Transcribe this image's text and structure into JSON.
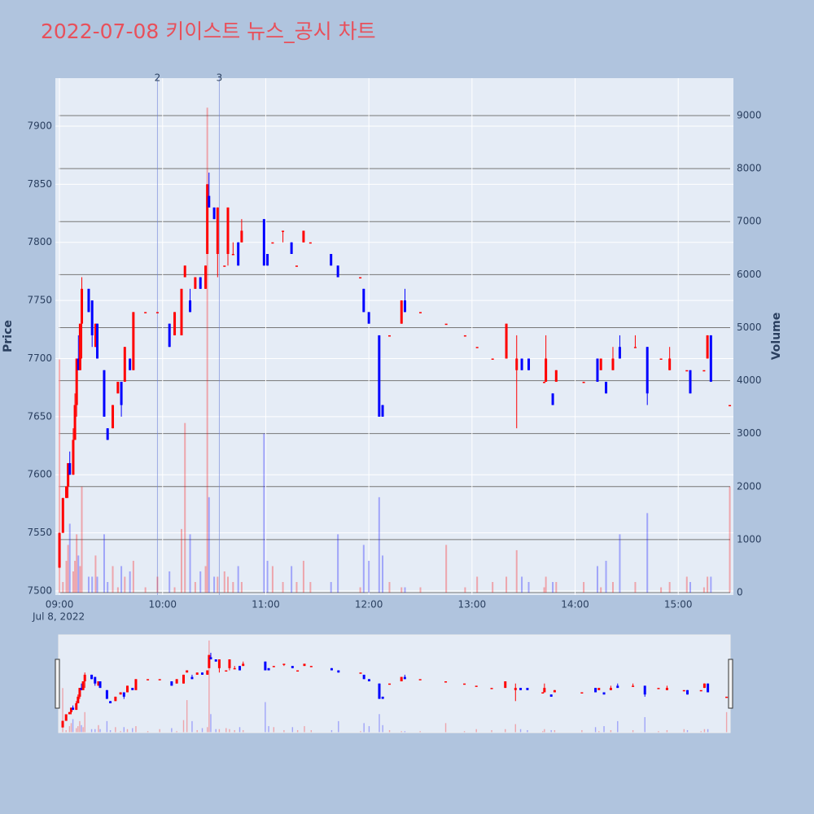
{
  "chart_data": {
    "type": "candlestick",
    "title": "2022-07-08 키이스트 뉴스_공시 차트",
    "ylabel": "Price",
    "y2label": "Volume",
    "x_date_label": "Jul 8, 2022",
    "increasing_color": "#ff0000",
    "decreasing_color": "#0000ff",
    "x": [
      0,
      2,
      4,
      5,
      6,
      8,
      9,
      10,
      11,
      12,
      13,
      17,
      19,
      21,
      22,
      26,
      28,
      31,
      34,
      36,
      38,
      41,
      43,
      50,
      57,
      64,
      67,
      71,
      73,
      76,
      79,
      82,
      85,
      86,
      87,
      90,
      92,
      96,
      98,
      101,
      104,
      106,
      119,
      121,
      124,
      130,
      135,
      138,
      142,
      146,
      158,
      162,
      175,
      177,
      180,
      186,
      188,
      192,
      199,
      201,
      210,
      225,
      236,
      243,
      252,
      260,
      266,
      269,
      273,
      282,
      283,
      287,
      289,
      305,
      313,
      315,
      318,
      322,
      326,
      335,
      342,
      350,
      355,
      365,
      367,
      375,
      377,
      379,
      390
    ],
    "open": [
      7520,
      7550,
      7580,
      7590,
      7610,
      7600,
      7630,
      7660,
      7700,
      7690,
      7730,
      7760,
      7750,
      7710,
      7730,
      7690,
      7640,
      7640,
      7670,
      7680,
      7680,
      7700,
      7690,
      7740,
      7740,
      7730,
      7720,
      7720,
      7770,
      7750,
      7760,
      7770,
      7760,
      7790,
      7840,
      7830,
      7790,
      7780,
      7790,
      7790,
      7800,
      7800,
      7820,
      7790,
      7800,
      7810,
      7800,
      7780,
      7800,
      7800,
      7790,
      7780,
      7770,
      7760,
      7740,
      7720,
      7660,
      7720,
      7730,
      7750,
      7740,
      7730,
      7720,
      7710,
      7700,
      7700,
      7690,
      7700,
      7700,
      7680,
      7680,
      7670,
      7680,
      7680,
      7700,
      7690,
      7680,
      7690,
      7710,
      7710,
      7710,
      7700,
      7690,
      7690,
      7690,
      7690,
      7700,
      7720,
      7660
    ],
    "high": [
      7550,
      7580,
      7590,
      7610,
      7620,
      7640,
      7670,
      7700,
      7720,
      7730,
      7770,
      7760,
      7750,
      7730,
      7730,
      7690,
      7640,
      7660,
      7680,
      7680,
      7710,
      7700,
      7740,
      7740,
      7740,
      7730,
      7740,
      7760,
      7780,
      7760,
      7770,
      7770,
      7780,
      7850,
      7860,
      7830,
      7830,
      7780,
      7830,
      7800,
      7800,
      7820,
      7820,
      7790,
      7800,
      7810,
      7800,
      7780,
      7810,
      7800,
      7790,
      7780,
      7770,
      7760,
      7740,
      7720,
      7660,
      7720,
      7750,
      7760,
      7740,
      7730,
      7720,
      7710,
      7700,
      7730,
      7720,
      7700,
      7700,
      7680,
      7720,
      7670,
      7690,
      7680,
      7700,
      7700,
      7680,
      7710,
      7720,
      7720,
      7710,
      7700,
      7710,
      7690,
      7690,
      7690,
      7720,
      7720,
      7660
    ],
    "low": [
      7520,
      7550,
      7580,
      7580,
      7600,
      7600,
      7630,
      7650,
      7690,
      7690,
      7700,
      7740,
      7710,
      7710,
      7700,
      7650,
      7630,
      7640,
      7670,
      7650,
      7680,
      7690,
      7690,
      7740,
      7740,
      7710,
      7720,
      7720,
      7770,
      7740,
      7760,
      7760,
      7760,
      7790,
      7830,
      7820,
      7770,
      7780,
      7780,
      7790,
      7780,
      7800,
      7780,
      7780,
      7800,
      7800,
      7790,
      7780,
      7800,
      7800,
      7780,
      7770,
      7770,
      7740,
      7730,
      7650,
      7650,
      7720,
      7730,
      7740,
      7740,
      7730,
      7720,
      7710,
      7700,
      7700,
      7640,
      7690,
      7690,
      7680,
      7680,
      7660,
      7680,
      7680,
      7680,
      7690,
      7670,
      7690,
      7700,
      7710,
      7660,
      7700,
      7690,
      7690,
      7670,
      7690,
      7700,
      7680,
      7660
    ],
    "close": [
      7550,
      7580,
      7590,
      7610,
      7600,
      7630,
      7660,
      7700,
      7690,
      7730,
      7760,
      7740,
      7720,
      7730,
      7700,
      7650,
      7630,
      7660,
      7680,
      7660,
      7710,
      7690,
      7740,
      7740,
      7740,
      7710,
      7740,
      7760,
      7780,
      7740,
      7770,
      7760,
      7780,
      7850,
      7830,
      7820,
      7830,
      7780,
      7830,
      7790,
      7780,
      7810,
      7780,
      7780,
      7800,
      7810,
      7790,
      7780,
      7810,
      7800,
      7780,
      7770,
      7770,
      7740,
      7730,
      7650,
      7650,
      7720,
      7750,
      7740,
      7740,
      7730,
      7720,
      7710,
      7700,
      7730,
      7700,
      7690,
      7690,
      7680,
      7700,
      7660,
      7690,
      7680,
      7680,
      7700,
      7670,
      7700,
      7700,
      7710,
      7670,
      7700,
      7700,
      7690,
      7670,
      7690,
      7720,
      7680,
      7660
    ],
    "volume": [
      4400,
      200,
      600,
      900,
      1300,
      400,
      600,
      1100,
      700,
      500,
      2000,
      300,
      300,
      700,
      300,
      1100,
      200,
      500,
      100,
      500,
      300,
      400,
      600,
      100,
      300,
      400,
      100,
      1200,
      3200,
      1100,
      200,
      400,
      500,
      9150,
      1800,
      300,
      300,
      400,
      300,
      200,
      500,
      200,
      3000,
      600,
      500,
      200,
      500,
      200,
      600,
      200,
      200,
      1100,
      100,
      900,
      600,
      1800,
      700,
      200,
      100,
      100,
      100,
      900,
      100,
      300,
      200,
      300,
      800,
      300,
      200,
      100,
      300,
      200,
      200,
      200,
      500,
      100,
      600,
      200,
      1100,
      200,
      1500,
      100,
      200,
      300,
      200,
      100,
      300,
      300,
      2000
    ],
    "xlim": [
      -2.4,
      392.1
    ],
    "xticks": [
      {
        "value": 0,
        "label": "09:00"
      },
      {
        "value": 60,
        "label": "10:00"
      },
      {
        "value": 120,
        "label": "11:00"
      },
      {
        "value": 180,
        "label": "12:00"
      },
      {
        "value": 240,
        "label": "13:00"
      },
      {
        "value": 300,
        "label": "14:00"
      },
      {
        "value": 360,
        "label": "15:00"
      }
    ],
    "ylim": [
      7496.5,
      7941.3
    ],
    "yticks": [
      7500,
      7550,
      7600,
      7650,
      7700,
      7750,
      7800,
      7850,
      7900
    ],
    "y2lim": [
      -46,
      9707
    ],
    "y2ticks": [
      0,
      1000,
      2000,
      3000,
      4000,
      5000,
      6000,
      7000,
      8000,
      9000
    ],
    "annotations": [
      {
        "x": 57,
        "label": "2"
      },
      {
        "x": 93,
        "label": "3"
      }
    ]
  }
}
